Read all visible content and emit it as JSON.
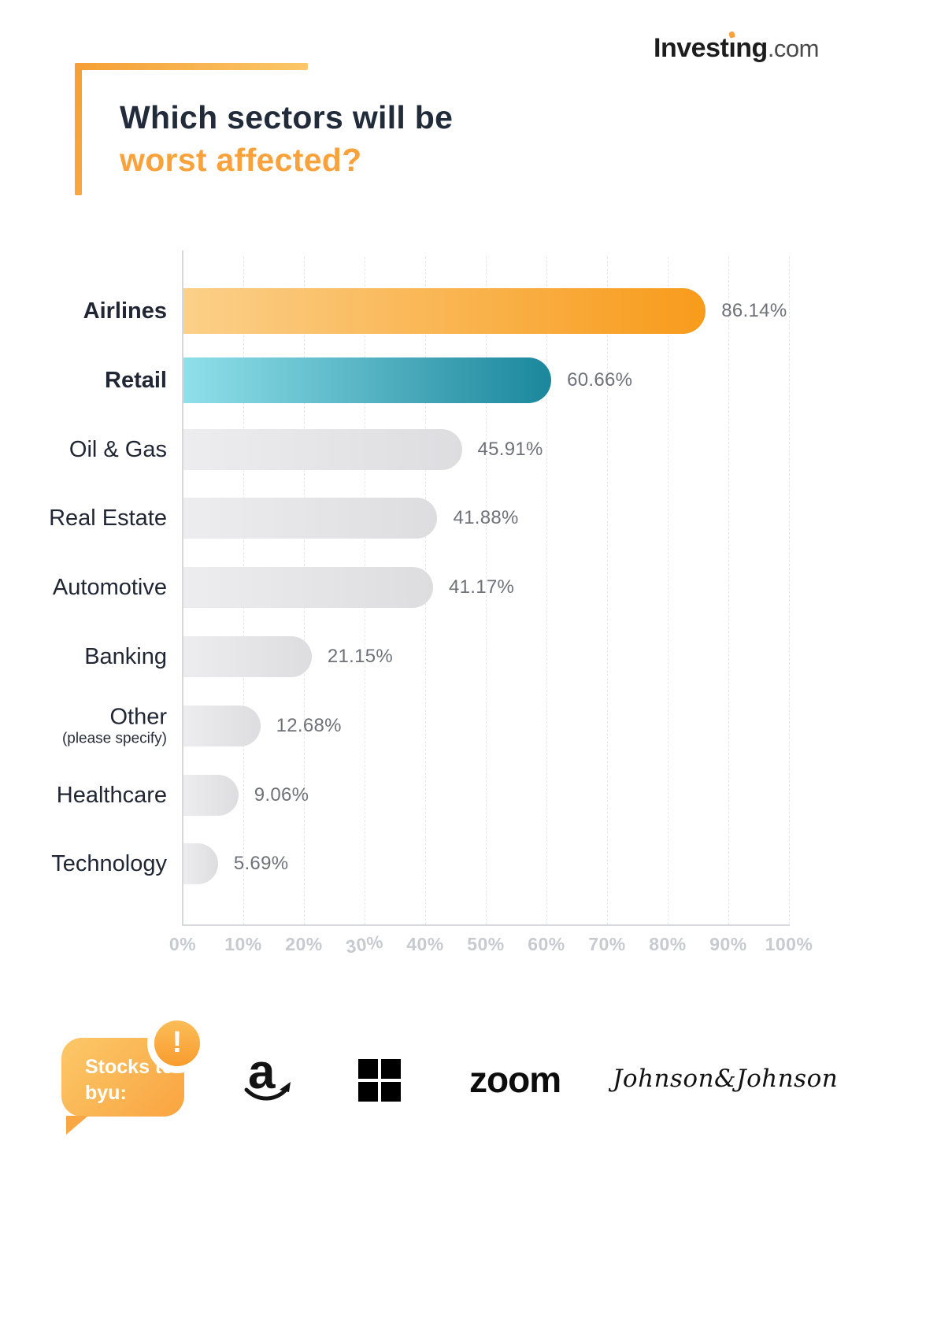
{
  "brand": {
    "name": "Investing",
    "suffix": ".com"
  },
  "title": {
    "line1": "Which sectors will be",
    "line2": "worst affected?"
  },
  "chart_data": {
    "type": "bar",
    "orientation": "horizontal",
    "title": "Which sectors will be worst affected?",
    "categories": [
      "Airlines",
      "Retail",
      "Oil & Gas",
      "Real Estate",
      "Automotive",
      "Banking",
      "Other",
      "Healthcare",
      "Technology"
    ],
    "category_sublabels": [
      "",
      "",
      "",
      "",
      "",
      "",
      "(please specify)",
      "",
      ""
    ],
    "values": [
      86.14,
      60.66,
      45.91,
      41.88,
      41.17,
      21.15,
      12.68,
      9.06,
      5.69
    ],
    "value_labels": [
      "86.14%",
      "60.66%",
      "45.91%",
      "41.88%",
      "41.17%",
      "21.15%",
      "12.68%",
      "9.06%",
      "5.69%"
    ],
    "bold_categories": [
      "Airlines",
      "Retail"
    ],
    "x_ticks": [
      "0%",
      "10%",
      "20%",
      "30%",
      "40%",
      "50%",
      "60%",
      "70%",
      "80%",
      "90%",
      "100%"
    ],
    "tilted_tick": "30%",
    "xlim": [
      0,
      100
    ],
    "grid": "vertical-dashed",
    "legend": "none",
    "bar_gradients": [
      [
        "#FBD089",
        "#F89B1B"
      ],
      [
        "#90E0EA",
        "#1B879C"
      ],
      [
        "#EDEDEF",
        "#DDDDE0"
      ],
      [
        "#EDEDEF",
        "#DDDDE0"
      ],
      [
        "#EDEDEF",
        "#DDDDE0"
      ],
      [
        "#EDEDEF",
        "#DDDDE0"
      ],
      [
        "#EDEDEF",
        "#DDDDE0"
      ],
      [
        "#EDEDEF",
        "#DDDDE0"
      ],
      [
        "#EDEDEF",
        "#DDDDE0"
      ]
    ],
    "value_color": "#6E7278",
    "label_color": "#202633",
    "accent_orange": "#F9A23B",
    "accent_teal": "#1B879C"
  },
  "footer": {
    "bubble_label": "Stocks to byu:",
    "badge": "!",
    "logos": [
      "amazon",
      "microsoft",
      "zoom",
      "johnson-and-johnson"
    ],
    "zoom_label": "zoom",
    "jnj_label": "Johnson&Johnson"
  }
}
